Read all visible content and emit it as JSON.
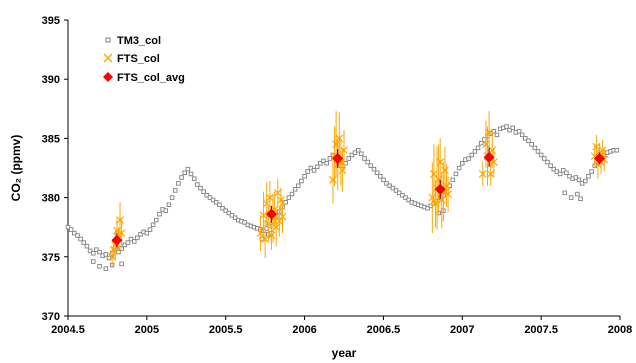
{
  "chart_data": {
    "type": "scatter",
    "xlabel": "year",
    "ylabel": "CO₂ (ppmv)",
    "xlim": [
      2004.5,
      2008
    ],
    "ylim": [
      370,
      395
    ],
    "xticks": [
      "2004.5",
      "2005",
      "2005.5",
      "2006",
      "2006.5",
      "2007",
      "2007.5",
      "2008"
    ],
    "yticks": [
      "370",
      "375",
      "380",
      "385",
      "390",
      "395"
    ],
    "legend_position": "top-left",
    "grid": false,
    "series": [
      {
        "name": "TM3_col",
        "marker": "open-square",
        "color": "#808080",
        "points": [
          [
            2004.5,
            377.5
          ],
          [
            2004.52,
            377.3
          ],
          [
            2004.54,
            377.0
          ],
          [
            2004.56,
            376.8
          ],
          [
            2004.58,
            376.5
          ],
          [
            2004.6,
            376.2
          ],
          [
            2004.62,
            375.9
          ],
          [
            2004.64,
            375.5
          ],
          [
            2004.66,
            375.3
          ],
          [
            2004.68,
            375.6
          ],
          [
            2004.7,
            375.4
          ],
          [
            2004.72,
            375.1
          ],
          [
            2004.74,
            375.2
          ],
          [
            2004.76,
            374.9
          ],
          [
            2004.78,
            375.3
          ],
          [
            2004.8,
            375.8
          ],
          [
            2004.82,
            375.4
          ],
          [
            2004.84,
            375.7
          ],
          [
            2004.86,
            376.0
          ],
          [
            2004.88,
            376.2
          ],
          [
            2004.9,
            376.5
          ],
          [
            2004.92,
            376.3
          ],
          [
            2004.94,
            376.6
          ],
          [
            2004.96,
            376.9
          ],
          [
            2004.98,
            377.1
          ],
          [
            2005.0,
            377.0
          ],
          [
            2005.02,
            377.3
          ],
          [
            2005.04,
            377.7
          ],
          [
            2005.06,
            378.1
          ],
          [
            2005.08,
            378.6
          ],
          [
            2005.1,
            379.0
          ],
          [
            2005.12,
            378.9
          ],
          [
            2005.14,
            379.4
          ],
          [
            2005.16,
            380.0
          ],
          [
            2005.18,
            380.6
          ],
          [
            2005.2,
            381.2
          ],
          [
            2005.22,
            381.7
          ],
          [
            2005.24,
            382.1
          ],
          [
            2005.26,
            382.4
          ],
          [
            2005.28,
            382.0
          ],
          [
            2005.3,
            381.6
          ],
          [
            2005.32,
            381.1
          ],
          [
            2005.34,
            380.8
          ],
          [
            2005.36,
            380.5
          ],
          [
            2005.38,
            380.2
          ],
          [
            2005.4,
            380.0
          ],
          [
            2005.42,
            379.8
          ],
          [
            2005.44,
            379.6
          ],
          [
            2005.46,
            379.4
          ],
          [
            2005.48,
            379.1
          ],
          [
            2005.5,
            378.9
          ],
          [
            2005.52,
            378.7
          ],
          [
            2005.54,
            378.5
          ],
          [
            2005.56,
            378.3
          ],
          [
            2005.58,
            378.1
          ],
          [
            2005.6,
            378.0
          ],
          [
            2005.62,
            377.9
          ],
          [
            2005.64,
            377.7
          ],
          [
            2005.66,
            377.6
          ],
          [
            2005.68,
            377.5
          ],
          [
            2005.7,
            377.4
          ],
          [
            2005.72,
            377.3
          ],
          [
            2005.74,
            377.2
          ],
          [
            2005.76,
            377.4
          ],
          [
            2005.78,
            377.6
          ],
          [
            2005.8,
            378.0
          ],
          [
            2005.82,
            378.4
          ],
          [
            2005.84,
            378.8
          ],
          [
            2005.86,
            379.2
          ],
          [
            2005.88,
            379.6
          ],
          [
            2005.9,
            380.0
          ],
          [
            2005.92,
            380.3
          ],
          [
            2005.94,
            380.7
          ],
          [
            2005.96,
            381.0
          ],
          [
            2005.98,
            381.4
          ],
          [
            2006.0,
            381.8
          ],
          [
            2006.02,
            382.2
          ],
          [
            2006.04,
            382.5
          ],
          [
            2006.06,
            382.3
          ],
          [
            2006.08,
            382.6
          ],
          [
            2006.1,
            382.9
          ],
          [
            2006.12,
            383.1
          ],
          [
            2006.14,
            382.9
          ],
          [
            2006.16,
            383.3
          ],
          [
            2006.18,
            383.6
          ],
          [
            2006.2,
            383.4
          ],
          [
            2006.22,
            383.0
          ],
          [
            2006.24,
            382.7
          ],
          [
            2006.26,
            382.9
          ],
          [
            2006.28,
            383.3
          ],
          [
            2006.3,
            383.6
          ],
          [
            2006.32,
            383.8
          ],
          [
            2006.34,
            384.0
          ],
          [
            2006.36,
            383.7
          ],
          [
            2006.38,
            383.3
          ],
          [
            2006.4,
            383.0
          ],
          [
            2006.42,
            382.7
          ],
          [
            2006.44,
            382.4
          ],
          [
            2006.46,
            382.1
          ],
          [
            2006.48,
            381.8
          ],
          [
            2006.5,
            381.5
          ],
          [
            2006.52,
            381.2
          ],
          [
            2006.54,
            381.0
          ],
          [
            2006.56,
            380.8
          ],
          [
            2006.58,
            380.6
          ],
          [
            2006.6,
            380.4
          ],
          [
            2006.62,
            380.2
          ],
          [
            2006.64,
            380.0
          ],
          [
            2006.66,
            379.8
          ],
          [
            2006.68,
            379.6
          ],
          [
            2006.7,
            379.5
          ],
          [
            2006.72,
            379.4
          ],
          [
            2006.74,
            379.3
          ],
          [
            2006.76,
            379.2
          ],
          [
            2006.78,
            379.1
          ],
          [
            2006.8,
            379.3
          ],
          [
            2006.82,
            379.5
          ],
          [
            2006.84,
            379.7
          ],
          [
            2006.86,
            380.0
          ],
          [
            2006.88,
            380.2
          ],
          [
            2006.9,
            380.5
          ],
          [
            2006.92,
            381.0
          ],
          [
            2006.94,
            381.5
          ],
          [
            2006.96,
            382.0
          ],
          [
            2006.98,
            382.5
          ],
          [
            2007.0,
            382.9
          ],
          [
            2007.02,
            383.2
          ],
          [
            2007.04,
            383.3
          ],
          [
            2007.06,
            383.6
          ],
          [
            2007.08,
            383.9
          ],
          [
            2007.1,
            384.2
          ],
          [
            2007.12,
            384.6
          ],
          [
            2007.14,
            384.9
          ],
          [
            2007.16,
            385.2
          ],
          [
            2007.18,
            385.4
          ],
          [
            2007.2,
            385.6
          ],
          [
            2007.22,
            385.3
          ],
          [
            2007.24,
            385.8
          ],
          [
            2007.26,
            385.9
          ],
          [
            2007.28,
            386.0
          ],
          [
            2007.3,
            385.7
          ],
          [
            2007.32,
            385.9
          ],
          [
            2007.34,
            385.5
          ],
          [
            2007.36,
            385.6
          ],
          [
            2007.38,
            385.3
          ],
          [
            2007.4,
            385.0
          ],
          [
            2007.42,
            384.8
          ],
          [
            2007.44,
            384.5
          ],
          [
            2007.46,
            384.2
          ],
          [
            2007.48,
            383.9
          ],
          [
            2007.5,
            383.6
          ],
          [
            2007.52,
            383.3
          ],
          [
            2007.54,
            383.0
          ],
          [
            2007.56,
            382.7
          ],
          [
            2007.58,
            382.4
          ],
          [
            2007.6,
            382.2
          ],
          [
            2007.62,
            382.0
          ],
          [
            2007.64,
            382.3
          ],
          [
            2007.66,
            382.1
          ],
          [
            2007.68,
            381.8
          ],
          [
            2007.7,
            381.6
          ],
          [
            2007.72,
            381.7
          ],
          [
            2007.74,
            381.5
          ],
          [
            2007.76,
            381.2
          ],
          [
            2007.78,
            381.4
          ],
          [
            2007.8,
            381.8
          ],
          [
            2007.82,
            382.2
          ],
          [
            2007.84,
            382.7
          ],
          [
            2007.86,
            383.1
          ],
          [
            2007.88,
            383.4
          ],
          [
            2007.9,
            383.6
          ],
          [
            2007.92,
            383.8
          ],
          [
            2007.94,
            383.9
          ],
          [
            2007.96,
            384.0
          ],
          [
            2007.98,
            384.0
          ],
          [
            2004.66,
            374.6
          ],
          [
            2004.7,
            374.2
          ],
          [
            2004.74,
            374.0
          ],
          [
            2004.78,
            374.3
          ],
          [
            2004.84,
            374.4
          ],
          [
            2005.73,
            376.5
          ],
          [
            2005.77,
            376.9
          ],
          [
            2005.79,
            377.0
          ],
          [
            2006.85,
            378.7
          ],
          [
            2006.88,
            378.9
          ],
          [
            2007.65,
            380.4
          ],
          [
            2007.69,
            380.0
          ],
          [
            2007.73,
            380.3
          ],
          [
            2007.75,
            379.9
          ]
        ]
      },
      {
        "name": "FTS_col",
        "marker": "x",
        "color": "#FFA500",
        "points": [
          [
            2004.78,
            375.0,
            0.8
          ],
          [
            2004.8,
            376.0,
            1.2
          ],
          [
            2004.81,
            377.2,
            1.0
          ],
          [
            2004.82,
            376.5,
            1.0
          ],
          [
            2004.83,
            378.1,
            1.5
          ],
          [
            2004.84,
            377.0,
            1.3
          ],
          [
            2004.79,
            375.6,
            0.7
          ],
          [
            2005.72,
            377.0,
            1.5
          ],
          [
            2005.74,
            378.5,
            2.0
          ],
          [
            2005.75,
            376.5,
            1.6
          ],
          [
            2005.76,
            379.5,
            1.8
          ],
          [
            2005.77,
            377.8,
            1.5
          ],
          [
            2005.78,
            380.0,
            1.4
          ],
          [
            2005.79,
            376.8,
            1.2
          ],
          [
            2005.8,
            378.2,
            2.0
          ],
          [
            2005.81,
            379.0,
            1.5
          ],
          [
            2005.82,
            377.5,
            1.6
          ],
          [
            2005.83,
            380.4,
            1.2
          ],
          [
            2005.84,
            378.0,
            1.3
          ],
          [
            2005.85,
            379.8,
            1.0
          ],
          [
            2005.86,
            378.4,
            1.4
          ],
          [
            2006.18,
            381.5,
            2.0
          ],
          [
            2006.19,
            383.5,
            2.5
          ],
          [
            2006.2,
            384.5,
            2.8
          ],
          [
            2006.21,
            382.8,
            2.2
          ],
          [
            2006.22,
            385.0,
            2.2
          ],
          [
            2006.23,
            383.0,
            2.0
          ],
          [
            2006.24,
            382.3,
            1.8
          ],
          [
            2006.25,
            384.0,
            1.7
          ],
          [
            2006.81,
            380.0,
            3.0
          ],
          [
            2006.82,
            382.0,
            2.5
          ],
          [
            2006.83,
            379.5,
            2.0
          ],
          [
            2006.84,
            380.8,
            3.5
          ],
          [
            2006.85,
            381.5,
            3.0
          ],
          [
            2006.86,
            383.0,
            2.0
          ],
          [
            2006.87,
            379.8,
            2.4
          ],
          [
            2006.88,
            380.5,
            2.5
          ],
          [
            2006.89,
            382.3,
            2.0
          ],
          [
            2006.9,
            381.0,
            1.8
          ],
          [
            2006.91,
            380.3,
            1.5
          ],
          [
            2007.13,
            382.0,
            1.0
          ],
          [
            2007.15,
            384.5,
            2.0
          ],
          [
            2007.16,
            383.5,
            2.5
          ],
          [
            2007.17,
            385.5,
            1.8
          ],
          [
            2007.18,
            382.0,
            1.0
          ],
          [
            2007.19,
            384.0,
            1.5
          ],
          [
            2007.2,
            383.0,
            1.2
          ],
          [
            2007.84,
            383.5,
            1.0
          ],
          [
            2007.85,
            384.3,
            1.0
          ],
          [
            2007.86,
            382.8,
            1.2
          ],
          [
            2007.87,
            383.8,
            0.8
          ],
          [
            2007.88,
            383.0,
            1.0
          ],
          [
            2007.89,
            384.0,
            0.9
          ],
          [
            2007.9,
            383.2,
            1.0
          ]
        ]
      },
      {
        "name": "FTS_col_avg",
        "marker": "diamond",
        "color": "#FF0000",
        "points": [
          [
            2004.81,
            376.4,
            0.6
          ],
          [
            2005.79,
            378.6,
            0.7
          ],
          [
            2006.21,
            383.3,
            0.8
          ],
          [
            2006.86,
            380.7,
            0.8
          ],
          [
            2007.17,
            383.4,
            0.8
          ],
          [
            2007.87,
            383.3,
            0.5
          ]
        ]
      }
    ]
  }
}
